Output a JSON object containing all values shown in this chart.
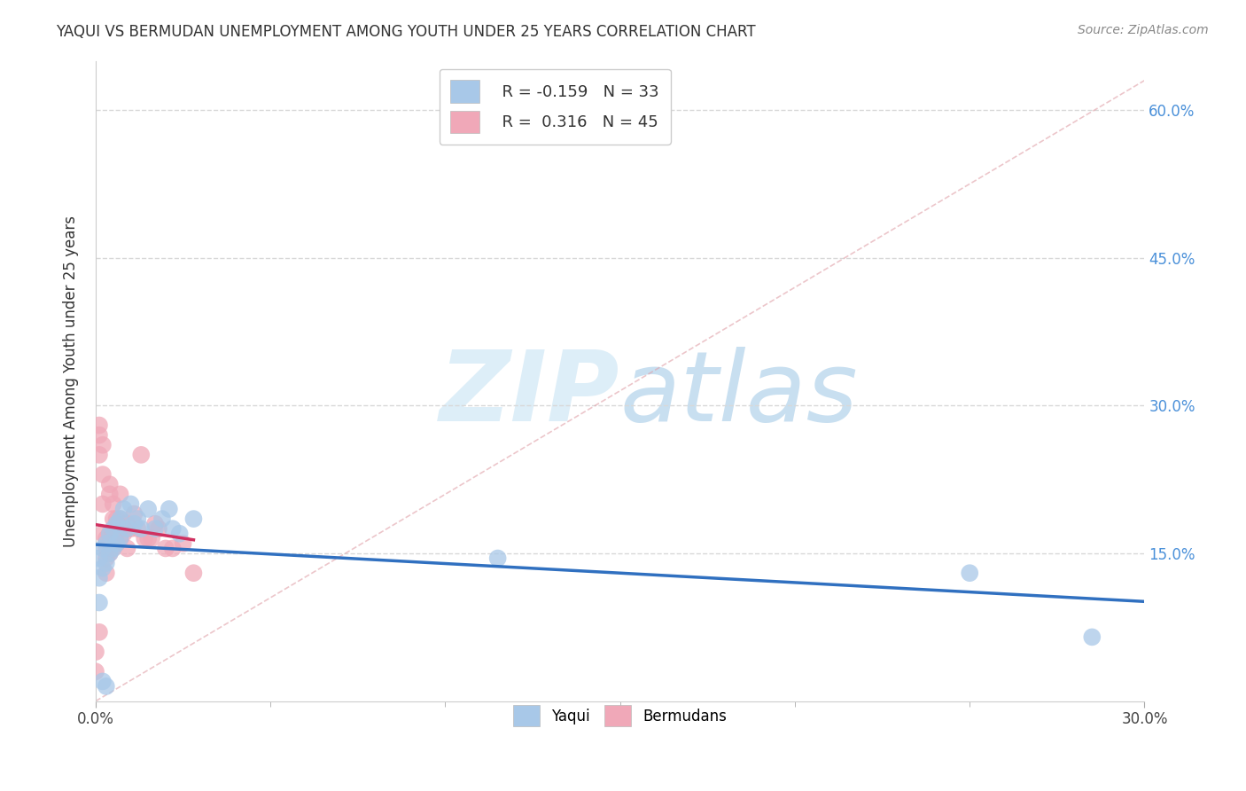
{
  "title": "YAQUI VS BERMUDAN UNEMPLOYMENT AMONG YOUTH UNDER 25 YEARS CORRELATION CHART",
  "source": "Source: ZipAtlas.com",
  "xlabel": "",
  "ylabel": "Unemployment Among Youth under 25 years",
  "xlim": [
    0.0,
    0.3
  ],
  "ylim": [
    0.0,
    0.65
  ],
  "xticks": [
    0.0,
    0.3
  ],
  "yticks": [
    0.15,
    0.3,
    0.45,
    0.6
  ],
  "ytick_labels_right": [
    "15.0%",
    "30.0%",
    "45.0%",
    "60.0%"
  ],
  "xtick_labels": [
    "0.0%",
    "30.0%"
  ],
  "legend_r_yaqui": "-0.159",
  "legend_n_yaqui": "33",
  "legend_r_bermudans": "0.316",
  "legend_n_bermudans": "45",
  "yaqui_color": "#a8c8e8",
  "bermudans_color": "#f0a8b8",
  "yaqui_line_color": "#3070c0",
  "bermudans_line_color": "#d03060",
  "yaqui_x": [
    0.001,
    0.001,
    0.002,
    0.002,
    0.003,
    0.003,
    0.004,
    0.004,
    0.005,
    0.005,
    0.006,
    0.006,
    0.007,
    0.007,
    0.008,
    0.009,
    0.01,
    0.011,
    0.012,
    0.013,
    0.015,
    0.017,
    0.019,
    0.021,
    0.022,
    0.024,
    0.028,
    0.001,
    0.002,
    0.003,
    0.115,
    0.25,
    0.285
  ],
  "yaqui_y": [
    0.145,
    0.125,
    0.155,
    0.135,
    0.16,
    0.14,
    0.17,
    0.15,
    0.175,
    0.155,
    0.18,
    0.16,
    0.185,
    0.165,
    0.195,
    0.175,
    0.2,
    0.18,
    0.185,
    0.175,
    0.195,
    0.175,
    0.185,
    0.195,
    0.175,
    0.17,
    0.185,
    0.1,
    0.02,
    0.015,
    0.145,
    0.13,
    0.065
  ],
  "bermudans_x": [
    0.0,
    0.0,
    0.001,
    0.001,
    0.001,
    0.001,
    0.002,
    0.002,
    0.002,
    0.002,
    0.003,
    0.003,
    0.003,
    0.003,
    0.004,
    0.004,
    0.004,
    0.004,
    0.005,
    0.005,
    0.005,
    0.005,
    0.006,
    0.006,
    0.006,
    0.007,
    0.007,
    0.007,
    0.008,
    0.008,
    0.009,
    0.009,
    0.01,
    0.011,
    0.012,
    0.013,
    0.014,
    0.015,
    0.016,
    0.017,
    0.018,
    0.02,
    0.022,
    0.025,
    0.028
  ],
  "bermudans_y": [
    0.05,
    0.03,
    0.28,
    0.27,
    0.25,
    0.07,
    0.26,
    0.23,
    0.2,
    0.17,
    0.165,
    0.155,
    0.145,
    0.13,
    0.22,
    0.21,
    0.17,
    0.15,
    0.2,
    0.185,
    0.17,
    0.155,
    0.185,
    0.175,
    0.16,
    0.21,
    0.185,
    0.165,
    0.175,
    0.17,
    0.18,
    0.155,
    0.175,
    0.19,
    0.175,
    0.25,
    0.165,
    0.165,
    0.165,
    0.18,
    0.175,
    0.155,
    0.155,
    0.16,
    0.13
  ],
  "background_color": "#ffffff",
  "grid_color": "#d8d8d8",
  "watermark_color": "#ddeef8"
}
